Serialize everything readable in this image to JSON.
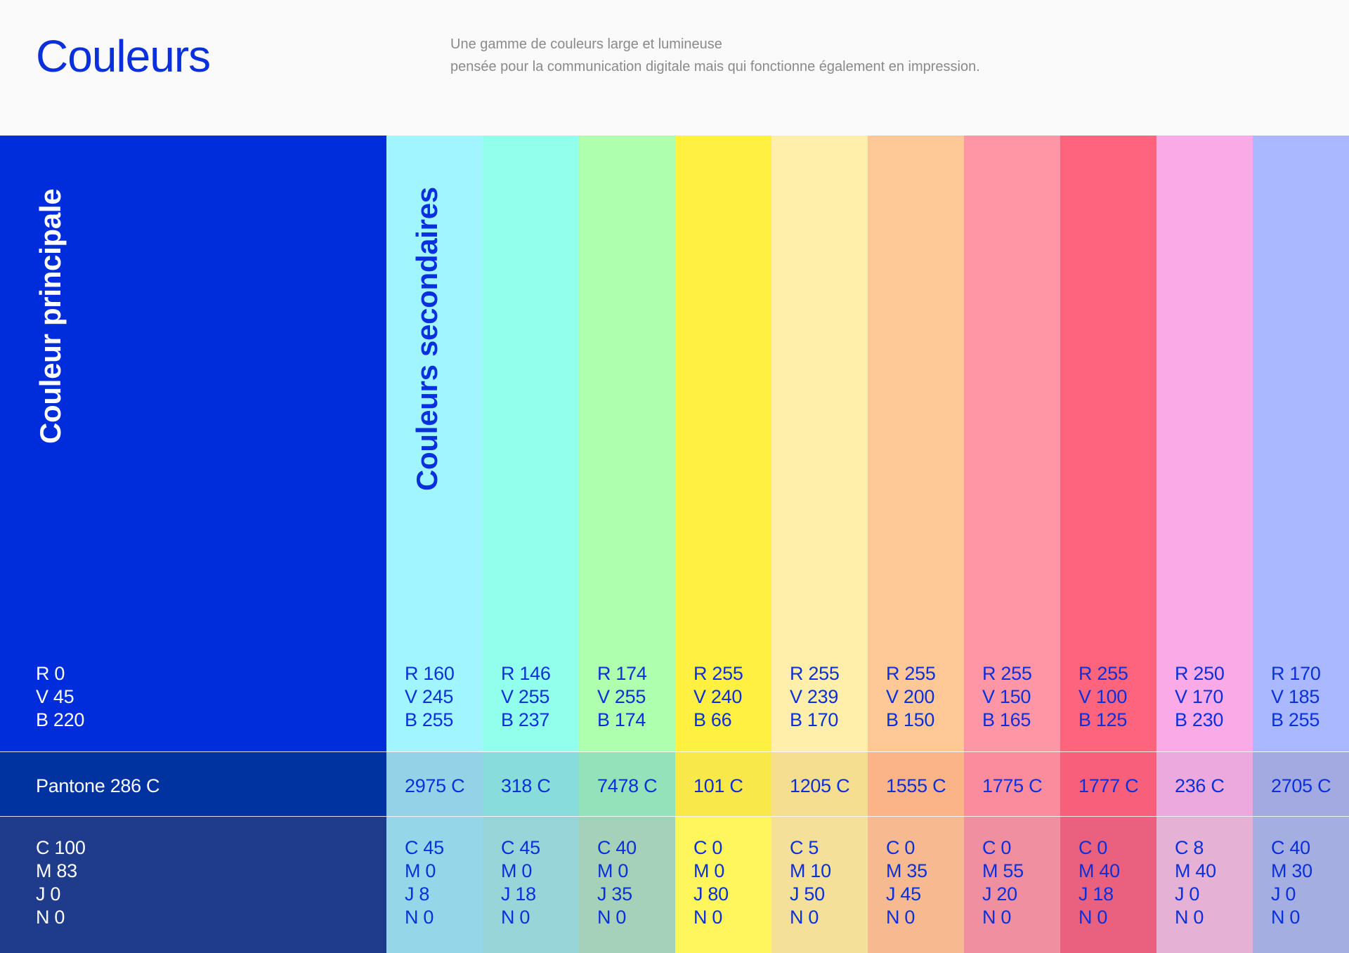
{
  "header": {
    "title": "Couleurs",
    "subtitle_line1": "Une gamme de couleurs large et lumineuse",
    "subtitle_line2": "pensée pour la communication digitale mais qui fonctionne également en impression."
  },
  "primary": {
    "label": "Couleur principale",
    "r": "R 0",
    "v": "V 45",
    "b": "B 220",
    "pantone": "Pantone 286 C",
    "c": "C 100",
    "m": "M 83",
    "j": "J 0",
    "n": "N 0",
    "colors": {
      "main": "#002ddc",
      "pantone": "#0033a0",
      "cmyk": "#1f3c8c",
      "text": "#ffffff"
    }
  },
  "secondary": {
    "label": "Couleurs secondaires",
    "label_color": "#0a2fdc",
    "text_color": "#0a30dc",
    "swatches": [
      {
        "r": "R 160",
        "v": "V 245",
        "b": "B 255",
        "pantone": "2975 C",
        "c": "C 45",
        "m": "M 0",
        "j": "J 8",
        "n": "N 0",
        "colors": {
          "main": "#a0f5ff",
          "pantone": "#94d3e7",
          "cmyk": "#95d6e8"
        }
      },
      {
        "r": "R 146",
        "v": "V 255",
        "b": "B 237",
        "pantone": "318 C",
        "c": "C 45",
        "m": "M 0",
        "j": "J 18",
        "n": "N 0",
        "colors": {
          "main": "#92ffed",
          "pantone": "#88dddb",
          "cmyk": "#98d5d8"
        }
      },
      {
        "r": "R 174",
        "v": "V 255",
        "b": "B 174",
        "pantone": "7478 C",
        "c": "C 40",
        "m": "M 0",
        "j": "J 35",
        "n": "N 0",
        "colors": {
          "main": "#aeffae",
          "pantone": "#94e2b9",
          "cmyk": "#a4d1b7"
        }
      },
      {
        "r": "R 255",
        "v": "V 240",
        "b": "B 66",
        "pantone": "101 C",
        "c": "C 0",
        "m": "M 0",
        "j": "J 80",
        "n": "N 0",
        "colors": {
          "main": "#fff042",
          "pantone": "#f8e84a",
          "cmyk": "#fff55c"
        }
      },
      {
        "r": "R 255",
        "v": "V 239",
        "b": "B 170",
        "pantone": "1205 C",
        "c": "C 5",
        "m": "M 10",
        "j": "J 50",
        "n": "N 0",
        "colors": {
          "main": "#ffefaa",
          "pantone": "#f6de90",
          "cmyk": "#f5e09a"
        }
      },
      {
        "r": "R 255",
        "v": "V 200",
        "b": "B 150",
        "pantone": "1555 C",
        "c": "C 0",
        "m": "M 35",
        "j": "J 45",
        "n": "N 0",
        "colors": {
          "main": "#ffc896",
          "pantone": "#fbb488",
          "cmyk": "#f7ba90"
        }
      },
      {
        "r": "R 255",
        "v": "V 150",
        "b": "B 165",
        "pantone": "1775 C",
        "c": "C 0",
        "m": "M 55",
        "j": "J 20",
        "n": "N 0",
        "colors": {
          "main": "#ff96a5",
          "pantone": "#fa8c9e",
          "cmyk": "#ef8fa0"
        }
      },
      {
        "r": "R 255",
        "v": "V 100",
        "b": "B 125",
        "pantone": "1777 C",
        "c": "C 0",
        "m": "M 40",
        "j": "J 18",
        "n": "N 0",
        "colors": {
          "main": "#ff647d",
          "pantone": "#f75f7b",
          "cmyk": "#ea6180"
        }
      },
      {
        "r": "R 250",
        "v": "V 170",
        "b": "B 230",
        "pantone": "236 C",
        "c": "C 8",
        "m": "M 40",
        "j": "J 0",
        "n": "N 0",
        "colors": {
          "main": "#faaae6",
          "pantone": "#eca9de",
          "cmyk": "#e5b1d5"
        }
      },
      {
        "r": "R 170",
        "v": "V 185",
        "b": "B 255",
        "pantone": "2705 C",
        "c": "C 40",
        "m": "M 30",
        "j": "J 0",
        "n": "N 0",
        "colors": {
          "main": "#aab9ff",
          "pantone": "#a3a9e1",
          "cmyk": "#a5aee1"
        }
      }
    ]
  }
}
